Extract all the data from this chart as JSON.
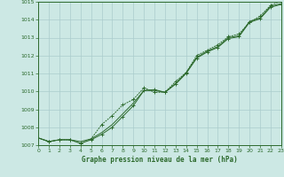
{
  "title": "Graphe pression niveau de la mer (hPa)",
  "background_color": "#cce8e4",
  "grid_color": "#aacccc",
  "line_color": "#2d6a2d",
  "x_min": 0,
  "x_max": 23,
  "y_min": 1007,
  "y_max": 1015,
  "y_ticks": [
    1007,
    1008,
    1009,
    1010,
    1011,
    1012,
    1013,
    1014,
    1015
  ],
  "x_ticks": [
    0,
    1,
    2,
    3,
    4,
    5,
    6,
    7,
    8,
    9,
    10,
    11,
    12,
    13,
    14,
    15,
    16,
    17,
    18,
    19,
    20,
    21,
    22,
    23
  ],
  "series1_x": [
    0,
    1,
    2,
    3,
    4,
    5,
    6,
    7,
    8,
    9,
    10,
    11,
    12,
    13,
    14,
    15,
    16,
    17,
    18,
    19,
    20,
    21,
    22,
    23
  ],
  "series1_y": [
    1007.4,
    1007.2,
    1007.3,
    1007.3,
    1007.1,
    1007.3,
    1007.6,
    1008.0,
    1008.6,
    1009.2,
    1010.05,
    1010.1,
    1009.95,
    1010.4,
    1011.0,
    1011.85,
    1012.2,
    1012.45,
    1012.95,
    1013.05,
    1013.85,
    1014.05,
    1014.7,
    1014.85
  ],
  "series2_x": [
    0,
    1,
    2,
    3,
    4,
    5,
    6,
    7,
    8,
    9,
    10,
    11,
    12,
    13,
    14,
    15,
    16,
    17,
    18,
    19,
    20,
    21,
    22,
    23
  ],
  "series2_y": [
    1007.4,
    1007.2,
    1007.3,
    1007.3,
    1007.2,
    1007.35,
    1007.7,
    1008.15,
    1008.75,
    1009.35,
    1010.05,
    1010.05,
    1009.95,
    1010.45,
    1011.05,
    1011.9,
    1012.25,
    1012.5,
    1013.0,
    1013.1,
    1013.9,
    1014.1,
    1014.75,
    1014.9
  ],
  "series3_x": [
    0,
    1,
    2,
    3,
    4,
    5,
    6,
    7,
    8,
    9,
    10,
    11,
    12,
    13,
    14,
    15,
    16,
    17,
    18,
    19,
    20,
    21,
    22,
    23
  ],
  "series3_y": [
    1007.4,
    1007.2,
    1007.3,
    1007.3,
    1007.1,
    1007.35,
    1008.15,
    1008.65,
    1009.25,
    1009.55,
    1010.2,
    1009.95,
    1009.95,
    1010.55,
    1011.05,
    1012.0,
    1012.3,
    1012.6,
    1013.05,
    1013.2,
    1013.85,
    1014.2,
    1014.8,
    1015.05
  ]
}
